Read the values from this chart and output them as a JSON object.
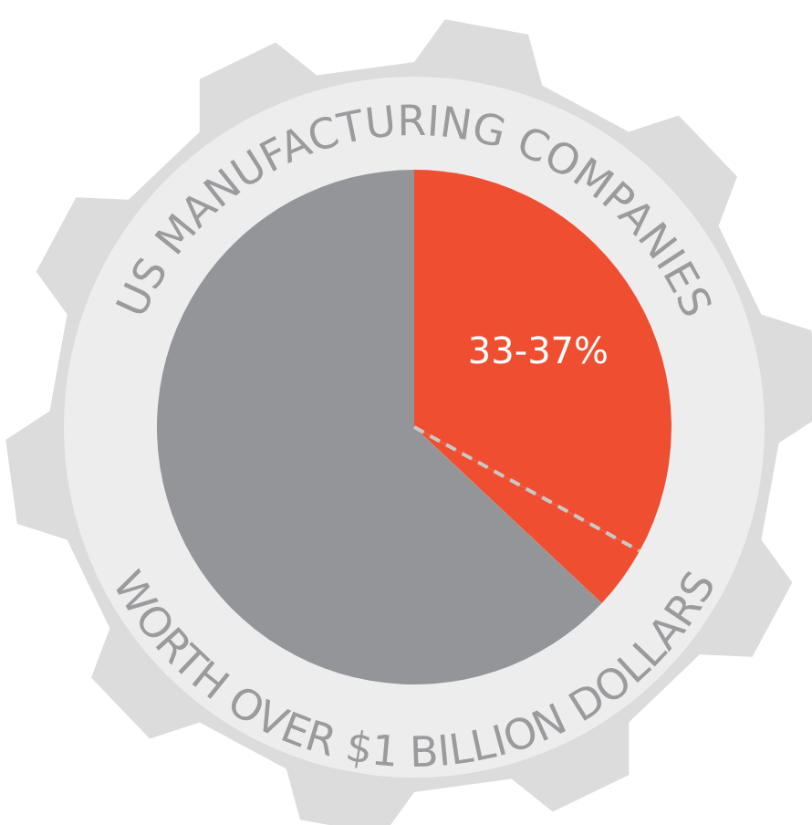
{
  "chart_data": {
    "type": "pie",
    "title": "US MANUFACTURING COMPANIES",
    "subtitle": "WORTH OVER $1 BILLION DOLLARS",
    "categories": [
      null,
      null,
      null
    ],
    "values": [
      33,
      4,
      63
    ],
    "colors": [
      "#ef4f30",
      "#ef4f30",
      "#939598"
    ],
    "annotations": [
      "33-37%"
    ],
    "legend": false
  }
}
